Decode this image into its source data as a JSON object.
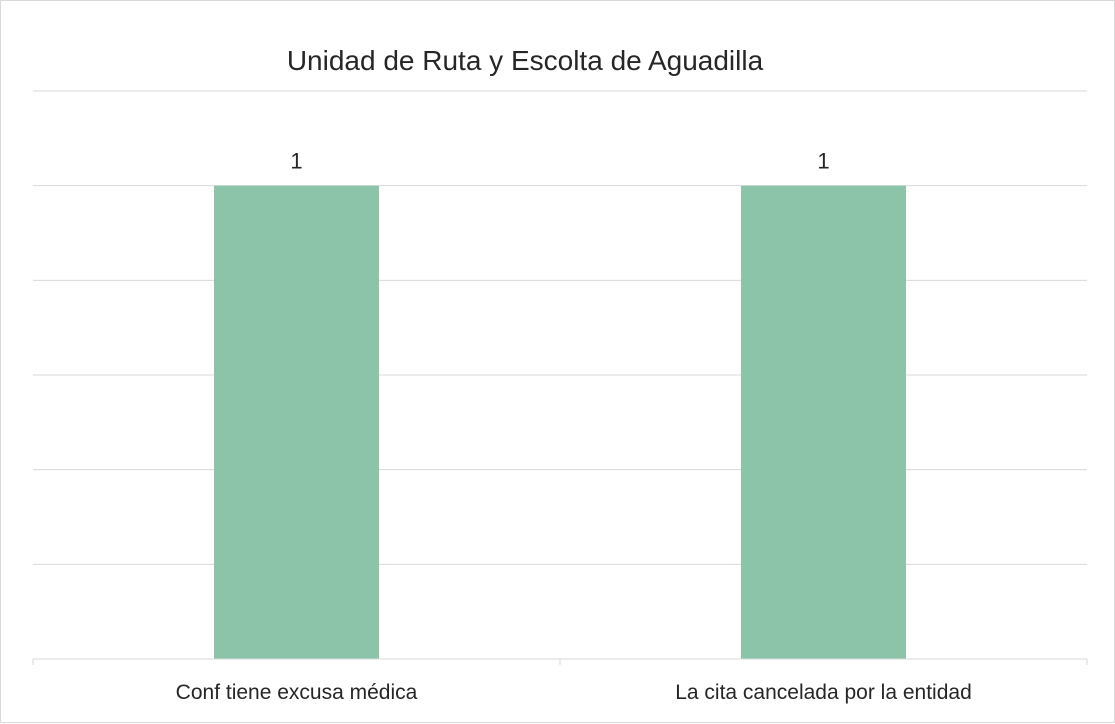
{
  "chart_data": {
    "type": "bar",
    "title": "Unidad de Ruta y Escolta de Aguadilla",
    "categories": [
      "Conf tiene excusa médica",
      "La cita cancelada por la entidad"
    ],
    "values": [
      1,
      1
    ],
    "xlabel": "",
    "ylabel": "",
    "ylim": [
      0,
      1.2
    ],
    "grid": true,
    "legend": "none",
    "data_labels": true,
    "bar_color": "#8bc4a8",
    "grid_color": "#d9d9d9"
  }
}
